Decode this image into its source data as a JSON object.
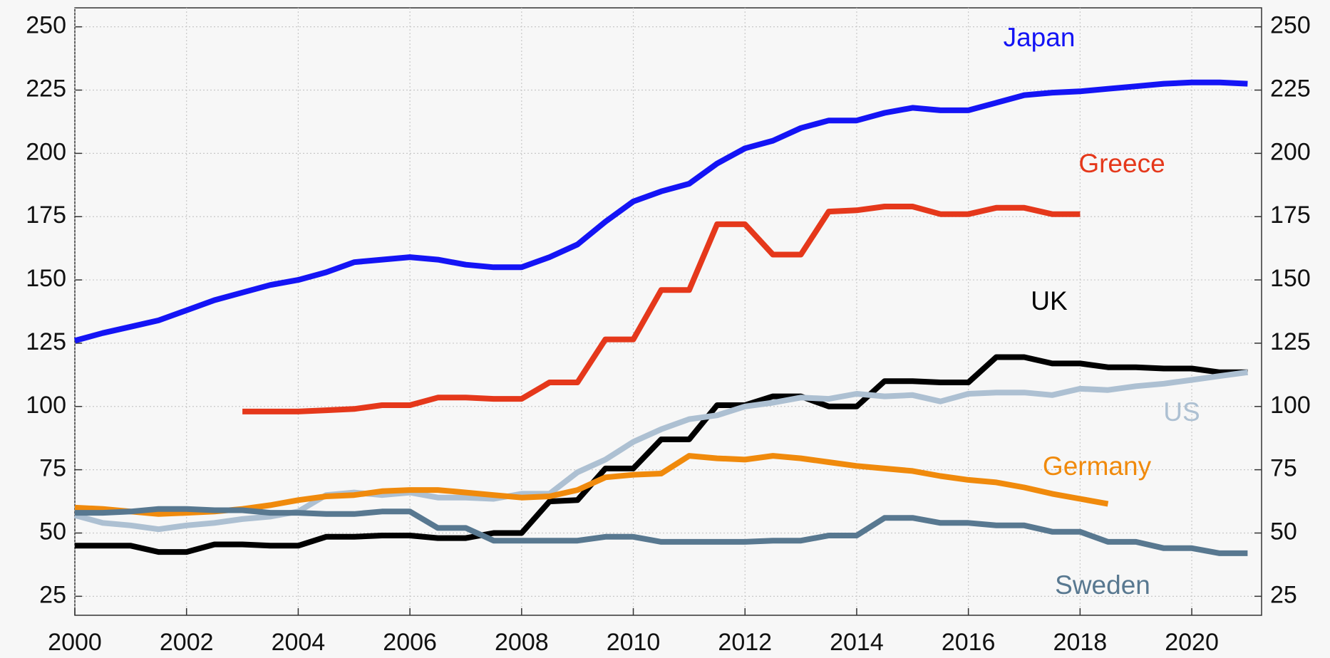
{
  "chart_data": {
    "type": "line",
    "x": [
      2000,
      2000.5,
      2001,
      2001.5,
      2002,
      2002.5,
      2003,
      2003.5,
      2004,
      2004.5,
      2005,
      2005.5,
      2006,
      2006.5,
      2007,
      2007.5,
      2008,
      2008.5,
      2009,
      2009.5,
      2010,
      2010.5,
      2011,
      2011.5,
      2012,
      2012.5,
      2013,
      2013.5,
      2014,
      2014.5,
      2015,
      2015.5,
      2016,
      2016.5,
      2017,
      2017.5,
      2018,
      2018.5,
      2019,
      2019.5,
      2020,
      2020.5,
      2021
    ],
    "series": [
      {
        "name": "Japan",
        "color": "#1414f5",
        "values": [
          126,
          129,
          131.5,
          134,
          138,
          142,
          145,
          148,
          150,
          153,
          157,
          158,
          159,
          158,
          156,
          155,
          155,
          159,
          164,
          173,
          181,
          185,
          188,
          196,
          202,
          205,
          210,
          213,
          213,
          216,
          218,
          217,
          217,
          220,
          223,
          224,
          224.5,
          225.5,
          226.5,
          227.5,
          228,
          228,
          227.5
        ]
      },
      {
        "name": "Greece",
        "color": "#e5381b",
        "values": [
          null,
          null,
          null,
          null,
          null,
          null,
          98,
          98,
          98,
          98.5,
          99,
          100.5,
          100.5,
          103.5,
          103.5,
          103,
          103,
          109.5,
          109.5,
          126.5,
          126.5,
          146,
          146,
          172,
          172,
          160,
          160,
          177,
          177.5,
          179,
          179,
          176,
          176,
          178.5,
          178.5,
          176,
          176,
          null,
          null,
          null,
          null,
          null,
          null
        ]
      },
      {
        "name": "UK",
        "color": "#000000",
        "values": [
          45,
          45,
          45,
          42.5,
          42.5,
          45.5,
          45.5,
          45,
          45,
          48.5,
          48.5,
          49,
          49,
          48,
          48,
          50,
          50,
          62.5,
          63,
          75.5,
          75.5,
          87,
          87,
          100.5,
          100.5,
          104,
          104,
          100,
          100,
          110,
          110,
          109.5,
          109.5,
          119.5,
          119.5,
          117,
          117,
          115.5,
          115.5,
          115,
          115,
          113.5,
          113.5
        ]
      },
      {
        "name": "US",
        "color": "#adc0d2",
        "values": [
          57,
          54,
          53,
          51.5,
          53,
          54,
          55.5,
          56.5,
          58.5,
          65,
          66,
          65,
          66,
          64,
          64,
          63.5,
          65.5,
          65.5,
          74,
          79,
          86,
          91,
          95,
          96.5,
          100,
          101.5,
          103.5,
          103,
          105,
          104,
          104.5,
          102,
          105,
          105.5,
          105.5,
          104.5,
          107,
          106.5,
          108,
          109,
          110.5,
          112,
          113.5
        ]
      },
      {
        "name": "Germany",
        "color": "#f08a0c",
        "values": [
          60,
          59.5,
          58.5,
          57.5,
          58,
          58.5,
          59.5,
          61,
          63,
          64.5,
          65,
          66.5,
          67,
          67,
          66,
          65,
          64,
          64.5,
          67,
          72,
          73,
          73.5,
          80.5,
          79.5,
          79,
          80.5,
          79.5,
          78,
          76.5,
          75.5,
          74.5,
          72.5,
          71,
          70,
          68,
          65.5,
          63.5,
          61.5,
          null,
          null,
          null,
          null,
          null
        ]
      },
      {
        "name": "Sweden",
        "color": "#587890",
        "values": [
          58,
          58,
          58.5,
          59.5,
          59.5,
          59,
          59,
          58,
          58,
          57.5,
          57.5,
          58.5,
          58.5,
          52,
          52,
          47,
          47,
          47,
          47,
          48.5,
          48.5,
          46.5,
          46.5,
          46.5,
          46.5,
          47,
          47,
          49,
          49,
          56,
          56,
          54,
          54,
          53,
          53,
          50.5,
          50.5,
          46.5,
          46.5,
          44,
          44,
          42,
          42
        ]
      }
    ],
    "xlim": [
      2000,
      2021.25
    ],
    "xticks": [
      2000,
      2002,
      2004,
      2006,
      2008,
      2010,
      2012,
      2014,
      2016,
      2018,
      2020
    ],
    "ylim": [
      17.5,
      257.5
    ],
    "yticks": [
      25,
      50,
      75,
      100,
      125,
      150,
      175,
      200,
      225,
      250
    ],
    "y2lim": [
      17.5,
      257.5
    ],
    "y2ticks": [
      25,
      50,
      75,
      100,
      125,
      150,
      175,
      200,
      225,
      250
    ],
    "grid": true
  }
}
